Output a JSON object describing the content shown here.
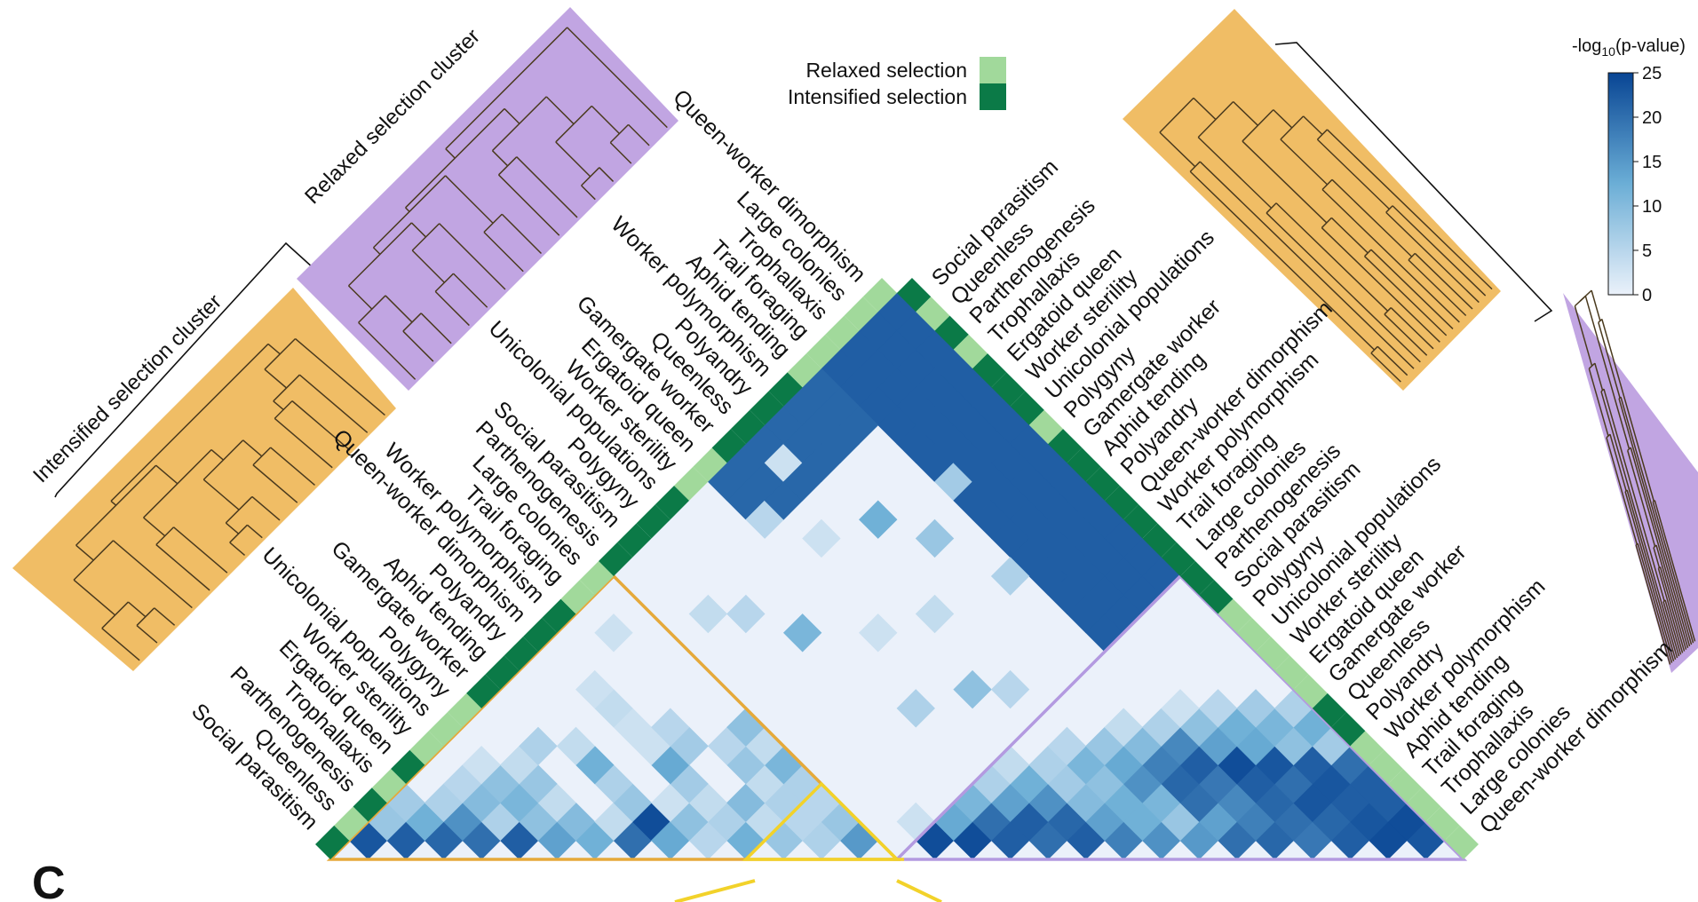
{
  "chart_data": {
    "type": "heatmap",
    "panel_label": "C",
    "traits_left": [
      "Social parasitism",
      "Queenless",
      "Parthenogenesis",
      "Trophallaxis",
      "Ergatoid queen",
      "Worker sterility",
      "Unicolonial populations",
      "Polygyny",
      "Gamergate worker",
      "Aphid tending",
      "Polyandry",
      "Queen-worker dimorphism",
      "Worker polymorphism",
      "Trail foraging",
      "Large colonies",
      "Parthenogenesis",
      "Social parasitism",
      "Polygyny",
      "Unicolonial populations",
      "Worker sterility",
      "Ergatoid queen",
      "Gamergate worker",
      "Queenless",
      "Polyandry",
      "Worker polymorphism",
      "Aphid tending",
      "Trail foraging",
      "Trophallaxis",
      "Large colonies",
      "Queen-worker dimorphism"
    ],
    "traits_right": [
      "Social parasitism",
      "Queenless",
      "Parthenogenesis",
      "Trophallaxis",
      "Ergatoid queen",
      "Worker sterility",
      "Unicolonial populations",
      "Polygyny",
      "Gamergate worker",
      "Aphid tending",
      "Polyandry",
      "Queen-worker dimorphism",
      "Worker polymorphism",
      "Trail foraging",
      "Large colonies",
      "Parthenogenesis",
      "Social parasitism",
      "Polygyny",
      "Unicolonial populations",
      "Worker sterility",
      "Ergatoid queen",
      "Gamergate worker",
      "Queenless",
      "Polyandry",
      "Worker polymorphism",
      "Aphid tending",
      "Trail foraging",
      "Trophallaxis",
      "Large colonies",
      "Queen-worker dimorphism"
    ],
    "selection_left": [
      "I",
      "R",
      "I",
      "R",
      "I",
      "R",
      "R",
      "R",
      "I",
      "I",
      "I",
      "I",
      "I",
      "R",
      "R",
      "I",
      "I",
      "I",
      "I",
      "R",
      "R",
      "I",
      "I",
      "I",
      "I",
      "R",
      "R",
      "R",
      "R",
      "R"
    ],
    "selection_right": [
      "I",
      "R",
      "I",
      "R",
      "I",
      "I",
      "I",
      "R",
      "I",
      "I",
      "I",
      "I",
      "I",
      "I",
      "I",
      "I",
      "I",
      "R",
      "R",
      "R",
      "R",
      "R",
      "I",
      "I",
      "R",
      "R",
      "R",
      "R",
      "R",
      "R"
    ],
    "legend": [
      {
        "label": "Relaxed selection",
        "color": "#a1d99b"
      },
      {
        "label": "Intensified selection",
        "color": "#0b7a47"
      }
    ],
    "colorbar": {
      "title": "-log10(p-value)",
      "min": 0,
      "max": 25,
      "ticks": [
        0,
        5,
        10,
        15,
        20,
        25
      ]
    },
    "clusters": {
      "intensified": "Intensified selection cluster",
      "relaxed": "Relaxed selection cluster"
    },
    "colors": {
      "intensified_cluster": "#f0bd65",
      "relaxed_cluster": "#c1a5e2",
      "intensified_outline": "#e5a93a",
      "relaxed_outline": "#b39ae0",
      "highlight_outline": "#f2d22a",
      "branch": "#4a3a1e"
    },
    "highlight_bands": [
      {
        "i_from": 7,
        "i_to": 9,
        "j_from": 7,
        "j_to": 9,
        "value": 24
      },
      {
        "i_from": 0,
        "i_to": 14,
        "j_from": 26,
        "j_to": 29,
        "value": 22
      },
      {
        "i_from": 0,
        "i_to": 2,
        "j_from": 20,
        "j_to": 25,
        "value": 21
      }
    ],
    "nonzero_cells": [
      [
        0,
        1,
        23
      ],
      [
        1,
        2,
        22
      ],
      [
        2,
        3,
        21
      ],
      [
        3,
        4,
        20
      ],
      [
        4,
        5,
        22
      ],
      [
        5,
        6,
        14
      ],
      [
        6,
        7,
        12
      ],
      [
        7,
        8,
        20
      ],
      [
        8,
        9,
        13
      ],
      [
        9,
        10,
        5
      ],
      [
        10,
        11,
        12
      ],
      [
        11,
        12,
        8
      ],
      [
        12,
        13,
        6
      ],
      [
        13,
        14,
        15
      ],
      [
        0,
        2,
        8
      ],
      [
        1,
        3,
        12
      ],
      [
        2,
        4,
        16
      ],
      [
        3,
        5,
        6
      ],
      [
        4,
        6,
        9
      ],
      [
        5,
        7,
        10
      ],
      [
        6,
        8,
        4
      ],
      [
        8,
        10,
        9
      ],
      [
        9,
        11,
        6
      ],
      [
        10,
        12,
        4
      ],
      [
        11,
        13,
        5
      ],
      [
        12,
        14,
        8
      ],
      [
        0,
        3,
        7
      ],
      [
        1,
        4,
        6
      ],
      [
        2,
        5,
        10
      ],
      [
        3,
        6,
        11
      ],
      [
        4,
        7,
        4
      ],
      [
        6,
        9,
        8
      ],
      [
        7,
        10,
        3
      ],
      [
        8,
        11,
        4
      ],
      [
        9,
        12,
        10
      ],
      [
        10,
        13,
        6
      ],
      [
        11,
        14,
        5
      ],
      [
        1,
        5,
        5
      ],
      [
        2,
        6,
        9
      ],
      [
        3,
        7,
        8
      ],
      [
        5,
        9,
        6
      ],
      [
        7,
        11,
        7
      ],
      [
        9,
        13,
        4
      ],
      [
        10,
        14,
        6
      ],
      [
        1,
        6,
        3
      ],
      [
        2,
        7,
        4
      ],
      [
        4,
        9,
        12
      ],
      [
        6,
        11,
        13
      ],
      [
        8,
        13,
        8
      ],
      [
        9,
        14,
        11
      ],
      [
        2,
        8,
        6
      ],
      [
        5,
        11,
        3
      ],
      [
        7,
        13,
        5
      ],
      [
        8,
        14,
        4
      ],
      [
        3,
        9,
        4
      ],
      [
        6,
        12,
        7
      ],
      [
        7,
        14,
        9
      ],
      [
        4,
        11,
        3
      ],
      [
        5,
        12,
        5
      ],
      [
        3,
        11,
        4
      ],
      [
        2,
        11,
        3
      ],
      [
        1,
        13,
        3
      ],
      [
        15,
        16,
        24
      ],
      [
        16,
        17,
        24
      ],
      [
        17,
        18,
        22
      ],
      [
        18,
        19,
        20
      ],
      [
        19,
        20,
        22
      ],
      [
        20,
        21,
        18
      ],
      [
        21,
        22,
        16
      ],
      [
        22,
        23,
        15
      ],
      [
        23,
        24,
        20
      ],
      [
        24,
        25,
        21
      ],
      [
        25,
        26,
        19
      ],
      [
        26,
        27,
        22
      ],
      [
        27,
        28,
        24
      ],
      [
        28,
        29,
        23
      ],
      [
        15,
        17,
        13
      ],
      [
        16,
        18,
        20
      ],
      [
        17,
        19,
        22
      ],
      [
        18,
        20,
        21
      ],
      [
        19,
        21,
        14
      ],
      [
        20,
        22,
        12
      ],
      [
        21,
        23,
        8
      ],
      [
        22,
        24,
        14
      ],
      [
        23,
        25,
        18
      ],
      [
        24,
        26,
        20
      ],
      [
        25,
        27,
        21
      ],
      [
        26,
        28,
        23
      ],
      [
        27,
        29,
        24
      ],
      [
        15,
        18,
        11
      ],
      [
        16,
        19,
        14
      ],
      [
        17,
        20,
        16
      ],
      [
        18,
        21,
        10
      ],
      [
        19,
        22,
        12
      ],
      [
        20,
        23,
        11
      ],
      [
        21,
        24,
        20
      ],
      [
        22,
        25,
        17
      ],
      [
        23,
        26,
        21
      ],
      [
        24,
        27,
        23
      ],
      [
        25,
        28,
        22
      ],
      [
        26,
        29,
        22
      ],
      [
        15,
        19,
        6
      ],
      [
        16,
        20,
        12
      ],
      [
        17,
        21,
        7
      ],
      [
        18,
        22,
        9
      ],
      [
        19,
        23,
        16
      ],
      [
        20,
        24,
        21
      ],
      [
        21,
        25,
        19
      ],
      [
        22,
        26,
        22
      ],
      [
        23,
        27,
        20
      ],
      [
        24,
        28,
        23
      ],
      [
        25,
        29,
        22
      ],
      [
        15,
        20,
        4
      ],
      [
        16,
        21,
        6
      ],
      [
        17,
        22,
        11
      ],
      [
        18,
        23,
        13
      ],
      [
        19,
        24,
        18
      ],
      [
        20,
        25,
        22
      ],
      [
        21,
        26,
        24
      ],
      [
        22,
        27,
        23
      ],
      [
        23,
        28,
        22
      ],
      [
        24,
        29,
        20
      ],
      [
        16,
        22,
        5
      ],
      [
        17,
        23,
        8
      ],
      [
        18,
        24,
        10
      ],
      [
        19,
        25,
        17
      ],
      [
        20,
        26,
        14
      ],
      [
        21,
        27,
        13
      ],
      [
        22,
        28,
        9
      ],
      [
        23,
        29,
        7
      ],
      [
        17,
        24,
        4
      ],
      [
        18,
        25,
        6
      ],
      [
        19,
        26,
        9
      ],
      [
        20,
        27,
        12
      ],
      [
        21,
        28,
        11
      ],
      [
        22,
        29,
        12
      ],
      [
        18,
        26,
        3
      ],
      [
        19,
        27,
        5
      ],
      [
        20,
        28,
        7
      ],
      [
        21,
        29,
        6
      ],
      [
        3,
        16,
        4
      ],
      [
        4,
        17,
        5
      ],
      [
        6,
        18,
        11
      ],
      [
        8,
        20,
        3
      ],
      [
        9,
        22,
        4
      ],
      [
        5,
        23,
        12
      ],
      [
        7,
        24,
        8
      ],
      [
        10,
        25,
        6
      ],
      [
        2,
        20,
        5
      ],
      [
        4,
        21,
        3
      ],
      [
        11,
        19,
        6
      ],
      [
        12,
        21,
        9
      ],
      [
        13,
        22,
        5
      ],
      [
        1,
        22,
        3
      ],
      [
        14,
        16,
        3
      ],
      [
        6,
        26,
        7
      ]
    ]
  }
}
